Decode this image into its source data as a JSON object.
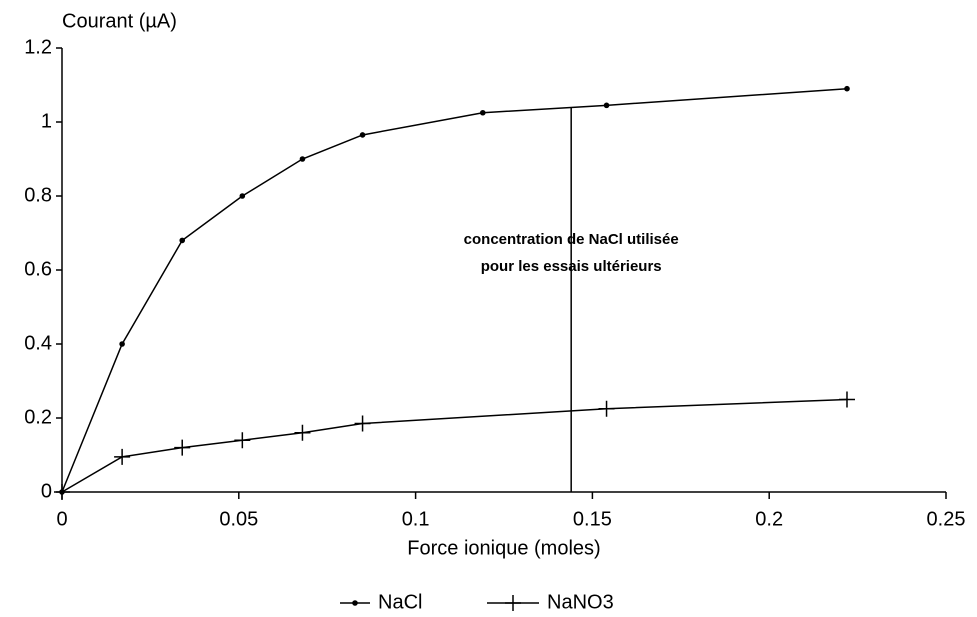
{
  "chart_data": {
    "type": "line",
    "y_label": "Courant (µA)",
    "x_label": "Force ionique (moles)",
    "xlim": [
      0,
      0.25
    ],
    "xticks": [
      0,
      0.05,
      0.1,
      0.15,
      0.2,
      0.25
    ],
    "ylim": [
      0,
      1.2
    ],
    "yticks": [
      0,
      0.2,
      0.4,
      0.6,
      0.8,
      1,
      1.2
    ],
    "grid": false,
    "legend": "bottom",
    "series": [
      {
        "name": "NaCl",
        "color": "#000000",
        "marker": "dot",
        "x": [
          0,
          0.017,
          0.034,
          0.051,
          0.068,
          0.085,
          0.119,
          0.154,
          0.222
        ],
        "values": [
          0,
          0.4,
          0.68,
          0.8,
          0.9,
          0.965,
          1.025,
          1.045,
          1.09
        ]
      },
      {
        "name": "NaNO3",
        "color": "#000000",
        "marker": "plus",
        "x": [
          0,
          0.017,
          0.034,
          0.051,
          0.068,
          0.085,
          0.154,
          0.222
        ],
        "values": [
          0,
          0.095,
          0.12,
          0.14,
          0.16,
          0.185,
          0.225,
          0.25
        ]
      }
    ],
    "annotation": {
      "lines": [
        "concentration de NaCl utilisée",
        "pour les essais ultérieurs"
      ],
      "x": 0.144,
      "y": 1.04
    }
  }
}
